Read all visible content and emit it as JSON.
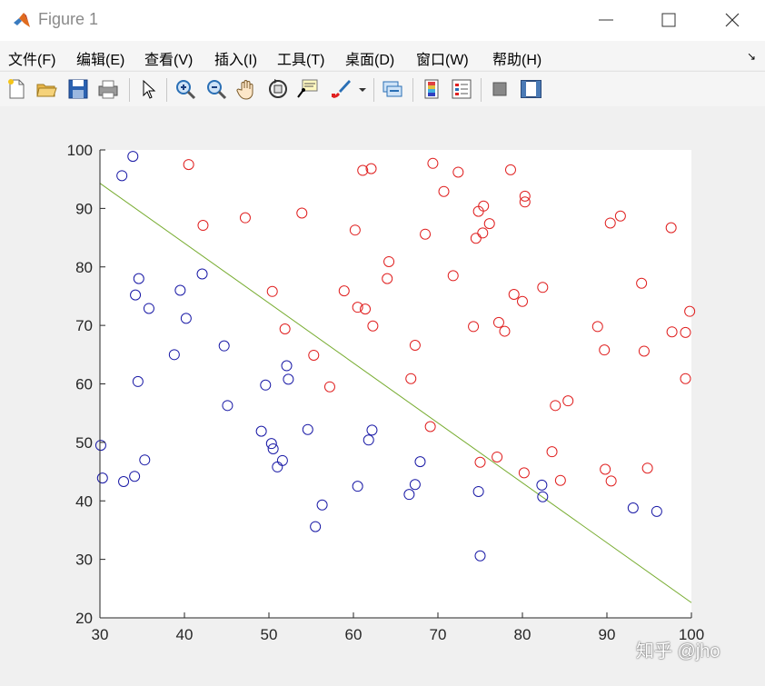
{
  "window": {
    "title": "Figure 1",
    "icon": "matlab-logo-icon"
  },
  "menu": [
    {
      "label": "文件(F)"
    },
    {
      "label": "编辑(E)"
    },
    {
      "label": "查看(V)"
    },
    {
      "label": "插入(I)"
    },
    {
      "label": "工具(T)"
    },
    {
      "label": "桌面(D)"
    },
    {
      "label": "窗口(W)"
    },
    {
      "label": "帮助(H)"
    }
  ],
  "dock_icon": "↘",
  "toolbar_icons": [
    "new-figure-icon",
    "open-file-icon",
    "save-icon",
    "print-icon",
    "edit-plot-arrow-icon",
    "zoom-in-icon",
    "zoom-out-icon",
    "pan-hand-icon",
    "rotate-3d-icon",
    "data-cursor-icon",
    "brush-icon",
    "brush-dropdown-icon",
    "link-plot-icon",
    "insert-colorbar-icon",
    "insert-legend-icon",
    "hide-plot-tools-icon",
    "show-plot-tools-icon"
  ],
  "watermark": "知乎 @jho",
  "chart_data": {
    "type": "scatter",
    "xlim": [
      30,
      100
    ],
    "ylim": [
      20,
      100
    ],
    "xticks": [
      30,
      40,
      50,
      60,
      70,
      80,
      90,
      100
    ],
    "yticks": [
      20,
      30,
      40,
      50,
      60,
      70,
      80,
      90,
      100
    ],
    "grid": false,
    "colors": {
      "admitted": "#e02020",
      "not_admitted": "#1a1aa6",
      "boundary": "#77ac30"
    },
    "series": [
      {
        "marker": "circle",
        "color": "#e02020",
        "points": [
          [
            40.5,
            97.5
          ],
          [
            42.2,
            87.1
          ],
          [
            47.2,
            88.4
          ],
          [
            50.4,
            75.8
          ],
          [
            51.9,
            69.4
          ],
          [
            53.9,
            89.2
          ],
          [
            55.3,
            64.9
          ],
          [
            57.2,
            59.5
          ],
          [
            58.9,
            75.9
          ],
          [
            60.2,
            86.3
          ],
          [
            60.5,
            73.1
          ],
          [
            61.1,
            96.5
          ],
          [
            61.4,
            72.8
          ],
          [
            62.1,
            96.8
          ],
          [
            62.3,
            69.9
          ],
          [
            64.0,
            78.0
          ],
          [
            64.2,
            80.9
          ],
          [
            66.8,
            60.9
          ],
          [
            67.3,
            66.6
          ],
          [
            68.5,
            85.6
          ],
          [
            69.1,
            52.7
          ],
          [
            69.4,
            97.7
          ],
          [
            70.7,
            92.9
          ],
          [
            71.8,
            78.5
          ],
          [
            72.4,
            96.2
          ],
          [
            74.2,
            69.8
          ],
          [
            74.5,
            84.9
          ],
          [
            74.8,
            89.5
          ],
          [
            75.0,
            46.6
          ],
          [
            75.3,
            85.8
          ],
          [
            75.4,
            90.4
          ],
          [
            76.1,
            87.4
          ],
          [
            77.0,
            47.5
          ],
          [
            77.2,
            70.5
          ],
          [
            77.9,
            69.0
          ],
          [
            78.6,
            96.6
          ],
          [
            79.0,
            75.3
          ],
          [
            80.0,
            74.1
          ],
          [
            80.2,
            44.8
          ],
          [
            80.3,
            92.1
          ],
          [
            80.3,
            91.1
          ],
          [
            82.4,
            76.5
          ],
          [
            83.5,
            48.4
          ],
          [
            83.9,
            56.3
          ],
          [
            84.5,
            43.5
          ],
          [
            85.4,
            57.1
          ],
          [
            88.9,
            69.8
          ],
          [
            89.7,
            65.8
          ],
          [
            89.8,
            45.4
          ],
          [
            90.4,
            87.5
          ],
          [
            90.5,
            43.4
          ],
          [
            91.6,
            88.7
          ],
          [
            94.1,
            77.2
          ],
          [
            94.4,
            65.6
          ],
          [
            94.8,
            45.6
          ],
          [
            97.6,
            86.7
          ],
          [
            97.7,
            68.9
          ],
          [
            99.3,
            68.8
          ],
          [
            99.3,
            60.9
          ],
          [
            99.8,
            72.4
          ]
        ]
      },
      {
        "marker": "circle",
        "color": "#1a1aa6",
        "points": [
          [
            30.1,
            49.5
          ],
          [
            30.3,
            43.9
          ],
          [
            32.6,
            95.6
          ],
          [
            32.8,
            43.3
          ],
          [
            33.9,
            98.9
          ],
          [
            34.1,
            44.2
          ],
          [
            34.2,
            75.2
          ],
          [
            34.5,
            60.4
          ],
          [
            34.6,
            78.0
          ],
          [
            35.3,
            47.0
          ],
          [
            35.8,
            72.9
          ],
          [
            38.8,
            65.0
          ],
          [
            39.5,
            76.0
          ],
          [
            40.2,
            71.2
          ],
          [
            42.1,
            78.8
          ],
          [
            44.7,
            66.5
          ],
          [
            45.1,
            56.3
          ],
          [
            49.1,
            51.9
          ],
          [
            49.6,
            59.8
          ],
          [
            50.3,
            49.8
          ],
          [
            50.5,
            48.9
          ],
          [
            51.0,
            45.8
          ],
          [
            51.6,
            46.9
          ],
          [
            52.1,
            63.1
          ],
          [
            52.3,
            60.8
          ],
          [
            54.6,
            52.2
          ],
          [
            55.5,
            35.6
          ],
          [
            56.3,
            39.3
          ],
          [
            60.5,
            42.5
          ],
          [
            61.8,
            50.4
          ],
          [
            62.2,
            52.1
          ],
          [
            66.6,
            41.1
          ],
          [
            67.3,
            42.8
          ],
          [
            67.9,
            46.7
          ],
          [
            74.8,
            41.6
          ],
          [
            75.0,
            30.6
          ],
          [
            82.3,
            42.7
          ],
          [
            82.4,
            40.7
          ],
          [
            93.1,
            38.8
          ],
          [
            95.9,
            38.2
          ]
        ]
      }
    ],
    "decision_boundary": {
      "x": [
        30,
        100
      ],
      "y": [
        94.3,
        22.6
      ]
    }
  }
}
